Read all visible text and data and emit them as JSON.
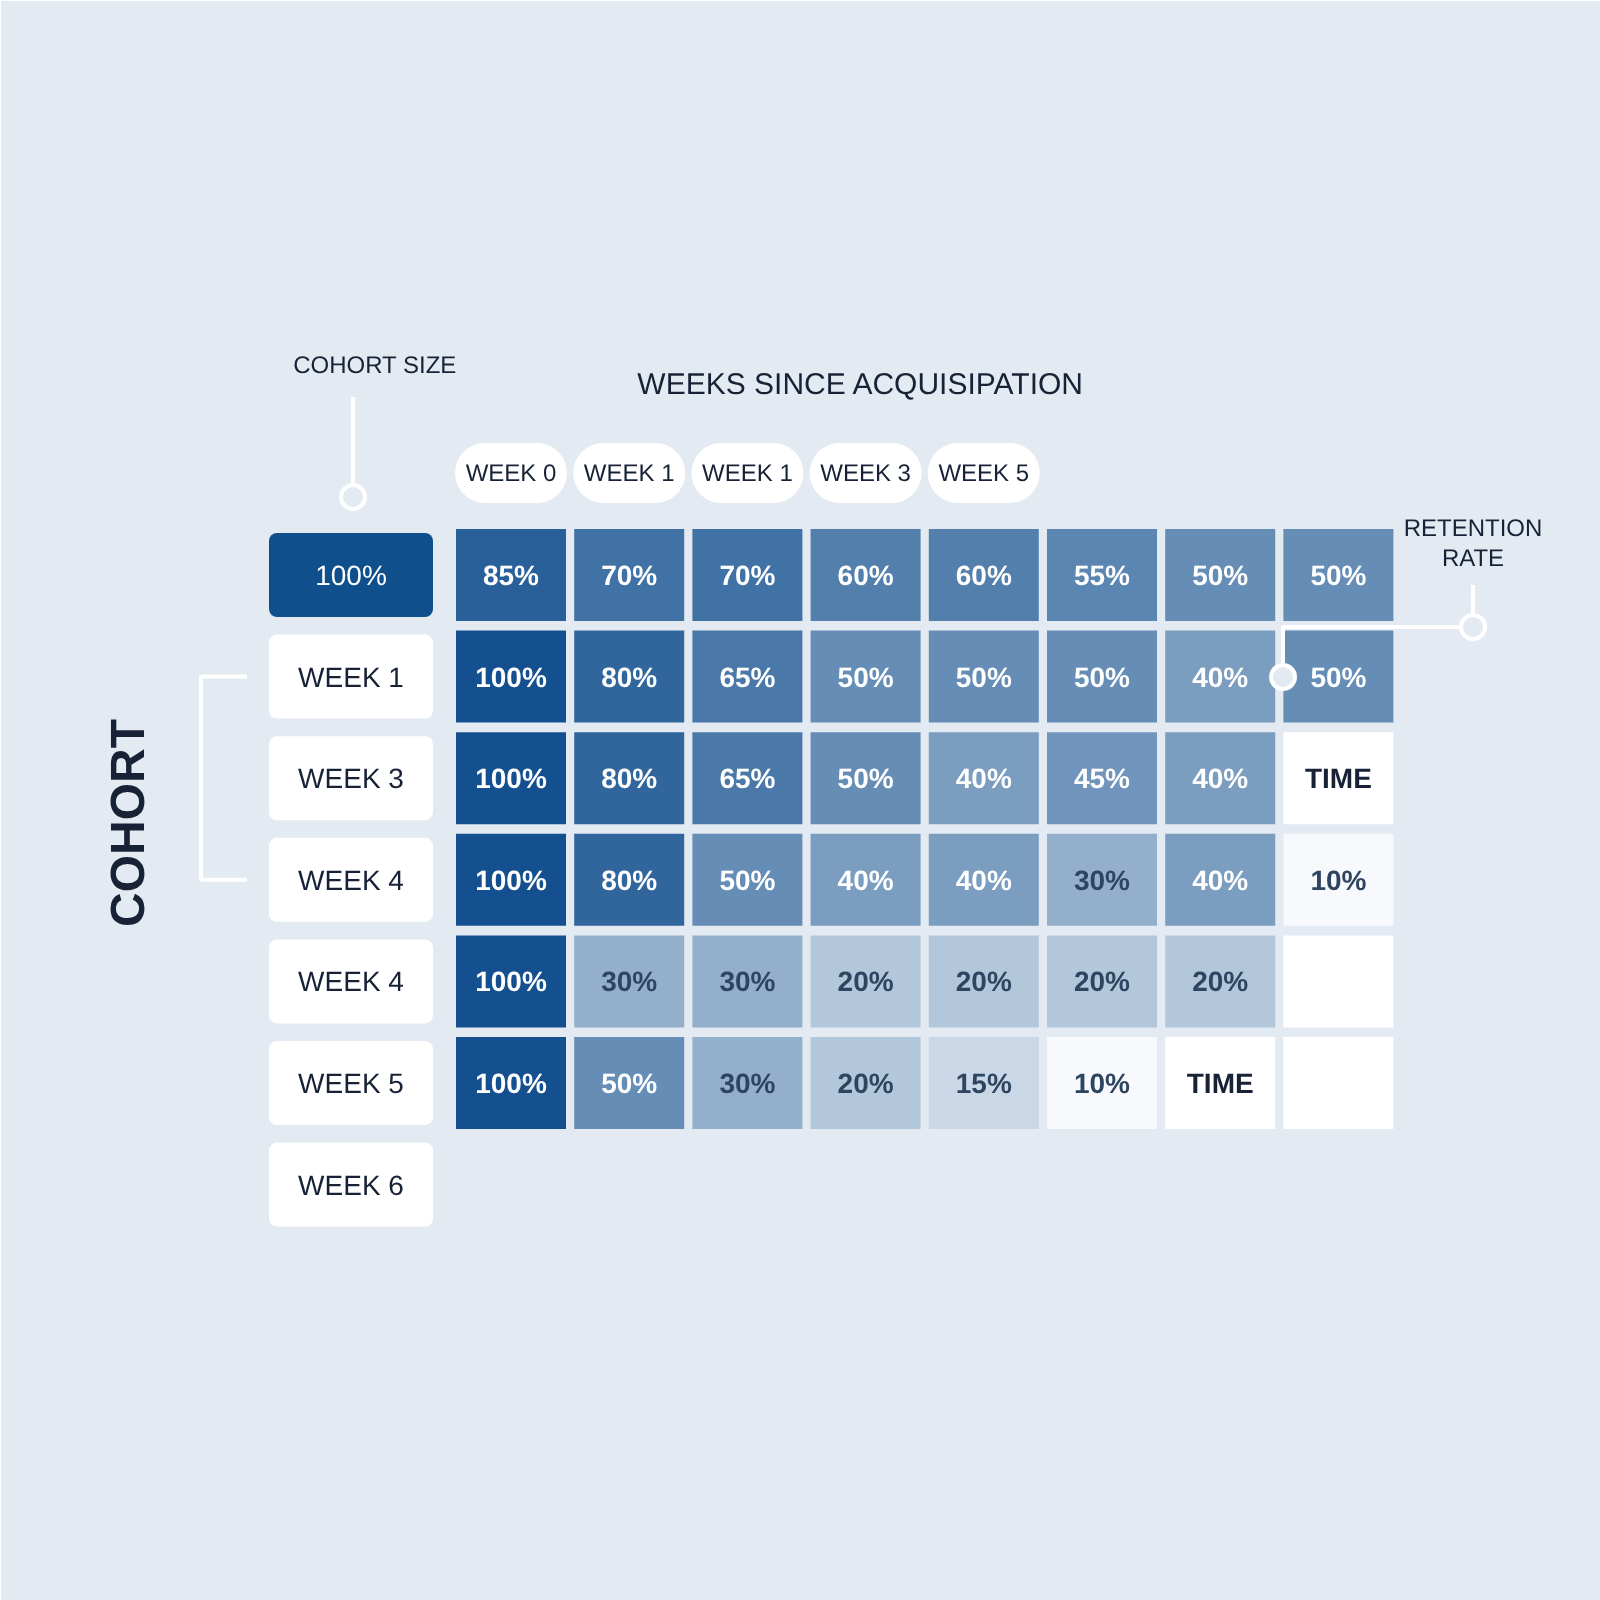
{
  "chart_data": {
    "type": "heatmap",
    "xlabel": "WEEKS SINCE ACQUISIPATION",
    "ylabel": "COHORT",
    "categories": [
      "WEEK 0",
      "WEEK 1",
      "WEEK 1",
      "WEEK 3",
      "WEEK 5",
      null,
      null,
      null
    ],
    "y_categories": [
      "100%",
      "WEEK 1",
      "WEEK 3",
      "WEEK 4",
      "WEEK 4",
      "WEEK 5",
      "WEEK 6"
    ],
    "cells": [
      [
        85,
        70,
        70,
        60,
        60,
        55,
        50,
        50
      ],
      [
        100,
        80,
        65,
        50,
        50,
        50,
        40,
        50
      ],
      [
        100,
        80,
        65,
        50,
        40,
        45,
        40,
        null
      ],
      [
        100,
        80,
        50,
        40,
        40,
        30,
        40,
        10
      ],
      [
        100,
        30,
        30,
        20,
        20,
        20,
        20,
        null
      ],
      [
        100,
        50,
        30,
        20,
        15,
        10,
        null,
        null
      ],
      [
        null,
        null,
        null,
        null,
        null,
        null,
        null,
        null
      ]
    ],
    "cell_labels": [
      [
        "85%",
        "70%",
        "70%",
        "60%",
        "60%",
        "55%",
        "50%",
        "50%"
      ],
      [
        "100%",
        "80%",
        "65%",
        "50%",
        "50%",
        "50%",
        "40%",
        "50%"
      ],
      [
        "100%",
        "80%",
        "65%",
        "50%",
        "40%",
        "45%",
        "40%",
        "TIME"
      ],
      [
        "100%",
        "80%",
        "50%",
        "40%",
        "40%",
        "30%",
        "40%",
        "10%"
      ],
      [
        "100%",
        "30%",
        "30%",
        "20%",
        "20%",
        "20%",
        "20%",
        null
      ],
      [
        "100%",
        "50%",
        "30%",
        "20%",
        "15%",
        "10%",
        "TIME",
        null
      ],
      [
        null,
        null,
        null,
        null,
        null,
        null,
        null,
        null
      ]
    ],
    "annotations": [
      "COHORT SIZE",
      "RETENTION RATE"
    ]
  }
}
